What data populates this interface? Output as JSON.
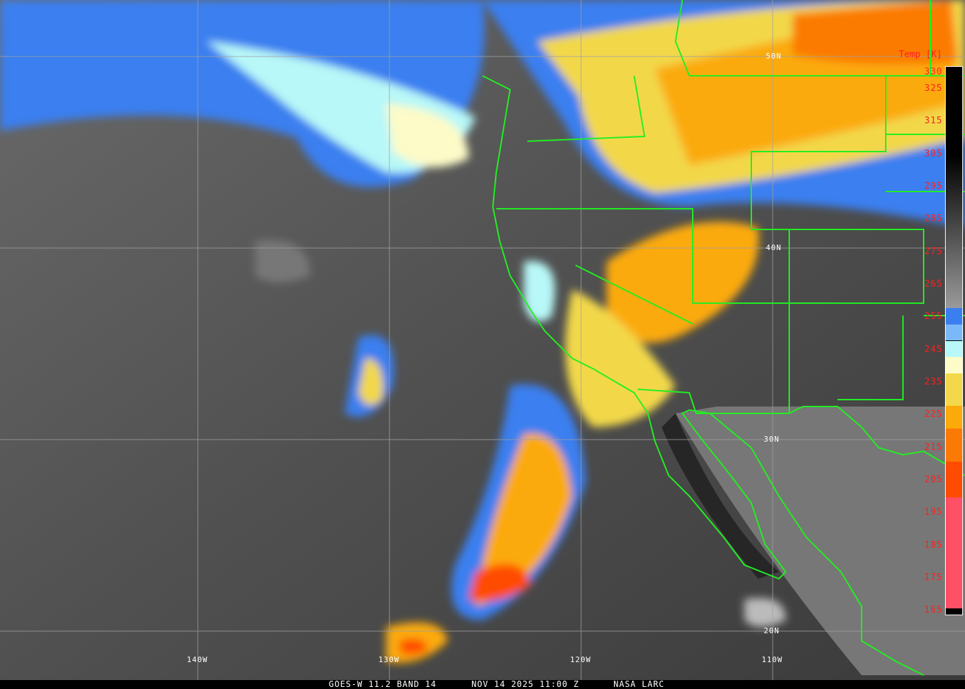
{
  "map": {
    "lat_labels": [
      "50N",
      "40N",
      "30N",
      "20N"
    ],
    "lon_labels": [
      "140W",
      "130W",
      "120W",
      "110W"
    ],
    "graticule_color": "#a0a0a0",
    "border_color": "#22ee22"
  },
  "colorbar": {
    "title": "Temp [K]",
    "ticks": [
      "330",
      "325",
      "315",
      "305",
      "295",
      "285",
      "275",
      "265",
      "255",
      "245",
      "235",
      "225",
      "215",
      "205",
      "195",
      "185",
      "175",
      "165"
    ],
    "range_k": [
      164,
      332
    ],
    "segments": [
      {
        "from": 332,
        "to": 305,
        "color": "#000000"
      },
      {
        "from": 305,
        "to": 258,
        "color": "gradient-black-to-gray"
      },
      {
        "from": 258,
        "to": 253,
        "color": "#3a7ff0"
      },
      {
        "from": 253,
        "to": 248,
        "color": "#7ab8f8"
      },
      {
        "from": 248,
        "to": 243,
        "color": "#b8f8f8"
      },
      {
        "from": 243,
        "to": 238,
        "color": "#fdfbc8"
      },
      {
        "from": 238,
        "to": 228,
        "color": "#f2d84a"
      },
      {
        "from": 228,
        "to": 221,
        "color": "#fbaa0a"
      },
      {
        "from": 221,
        "to": 211,
        "color": "#fb7a06"
      },
      {
        "from": 211,
        "to": 200,
        "color": "#ff4c00"
      },
      {
        "from": 200,
        "to": 166,
        "color": "#ff5066"
      },
      {
        "from": 166,
        "to": 164,
        "color": "#000000"
      }
    ]
  },
  "caption": {
    "product": "GOES-W 11.2 BAND 14",
    "datetime": "NOV 14 2025 11:00 Z",
    "source": "NASA LARC"
  }
}
